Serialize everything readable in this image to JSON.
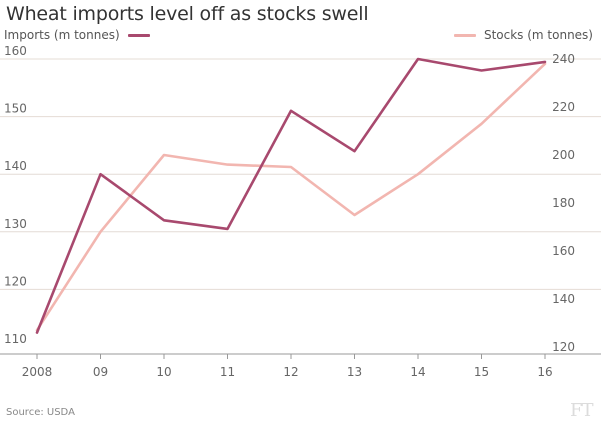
{
  "title": "Wheat imports level off as stocks swell",
  "source": "Source: USDA",
  "logo": "FT",
  "legend": {
    "left_label": "Imports (m tonnes)",
    "right_label": "Stocks (m tonnes)"
  },
  "colors": {
    "imports": "#a8496e",
    "stocks": "#f2b6b0",
    "gridline": "#e4dcd5",
    "axis_line": "#999999",
    "text": "#666666"
  },
  "chart_data": {
    "type": "line",
    "title": "Wheat imports level off as stocks swell",
    "categories": [
      "2008",
      "09",
      "10",
      "11",
      "12",
      "13",
      "14",
      "15",
      "16"
    ],
    "series": [
      {
        "name": "Imports (m tonnes)",
        "axis": "left",
        "values": [
          112.5,
          140,
          132,
          130.5,
          151,
          144,
          160,
          158,
          159.5
        ]
      },
      {
        "name": "Stocks (m tonnes)",
        "axis": "right",
        "values": [
          127,
          168,
          200,
          196,
          195,
          175,
          192,
          213,
          238
        ]
      }
    ],
    "left_axis": {
      "label": "Imports (m tonnes)",
      "ylim": [
        110,
        160
      ],
      "ticks": [
        110,
        120,
        130,
        140,
        150,
        160
      ]
    },
    "right_axis": {
      "label": "Stocks (m tonnes)",
      "ylim": [
        120,
        240
      ],
      "ticks": [
        120,
        140,
        160,
        180,
        200,
        220,
        240
      ]
    },
    "grid": true,
    "legend": "top"
  }
}
